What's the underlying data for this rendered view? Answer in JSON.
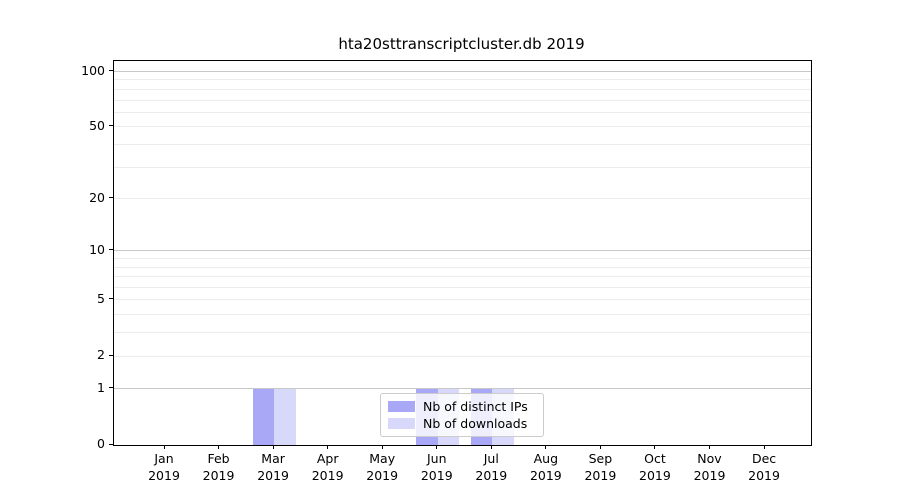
{
  "chart_data": {
    "type": "bar",
    "title": "hta20sttranscriptcluster.db 2019",
    "categories": [
      "Jan",
      "Feb",
      "Mar",
      "Apr",
      "May",
      "Jun",
      "Jul",
      "Aug",
      "Sep",
      "Oct",
      "Nov",
      "Dec"
    ],
    "year": "2019",
    "series": [
      {
        "name": "Nb of distinct IPs",
        "color": "#a8a8f6",
        "values": [
          0,
          0,
          1,
          0,
          0,
          1,
          1,
          0,
          0,
          0,
          0,
          0
        ]
      },
      {
        "name": "Nb of downloads",
        "color": "#d8d9fa",
        "values": [
          0,
          0,
          1,
          0,
          0,
          1,
          1,
          0,
          0,
          0,
          0,
          0
        ]
      }
    ],
    "yscale": "log1p",
    "ylim": [
      0,
      114
    ],
    "yticks": [
      0,
      1,
      2,
      5,
      10,
      20,
      50,
      100
    ],
    "gridlines_major": [
      1,
      10,
      100
    ],
    "gridlines_minor": [
      2,
      3,
      4,
      5,
      6,
      7,
      8,
      9,
      20,
      30,
      40,
      50,
      60,
      70,
      80,
      90
    ],
    "legend": {
      "position": "lower center",
      "entries": [
        "Nb of distinct IPs",
        "Nb of downloads"
      ]
    },
    "grid": true,
    "colors": {
      "axis": "#000000",
      "grid_major": "#c8c8c8",
      "grid_minor": "#ececec",
      "legend_border": "#cccccc"
    }
  }
}
